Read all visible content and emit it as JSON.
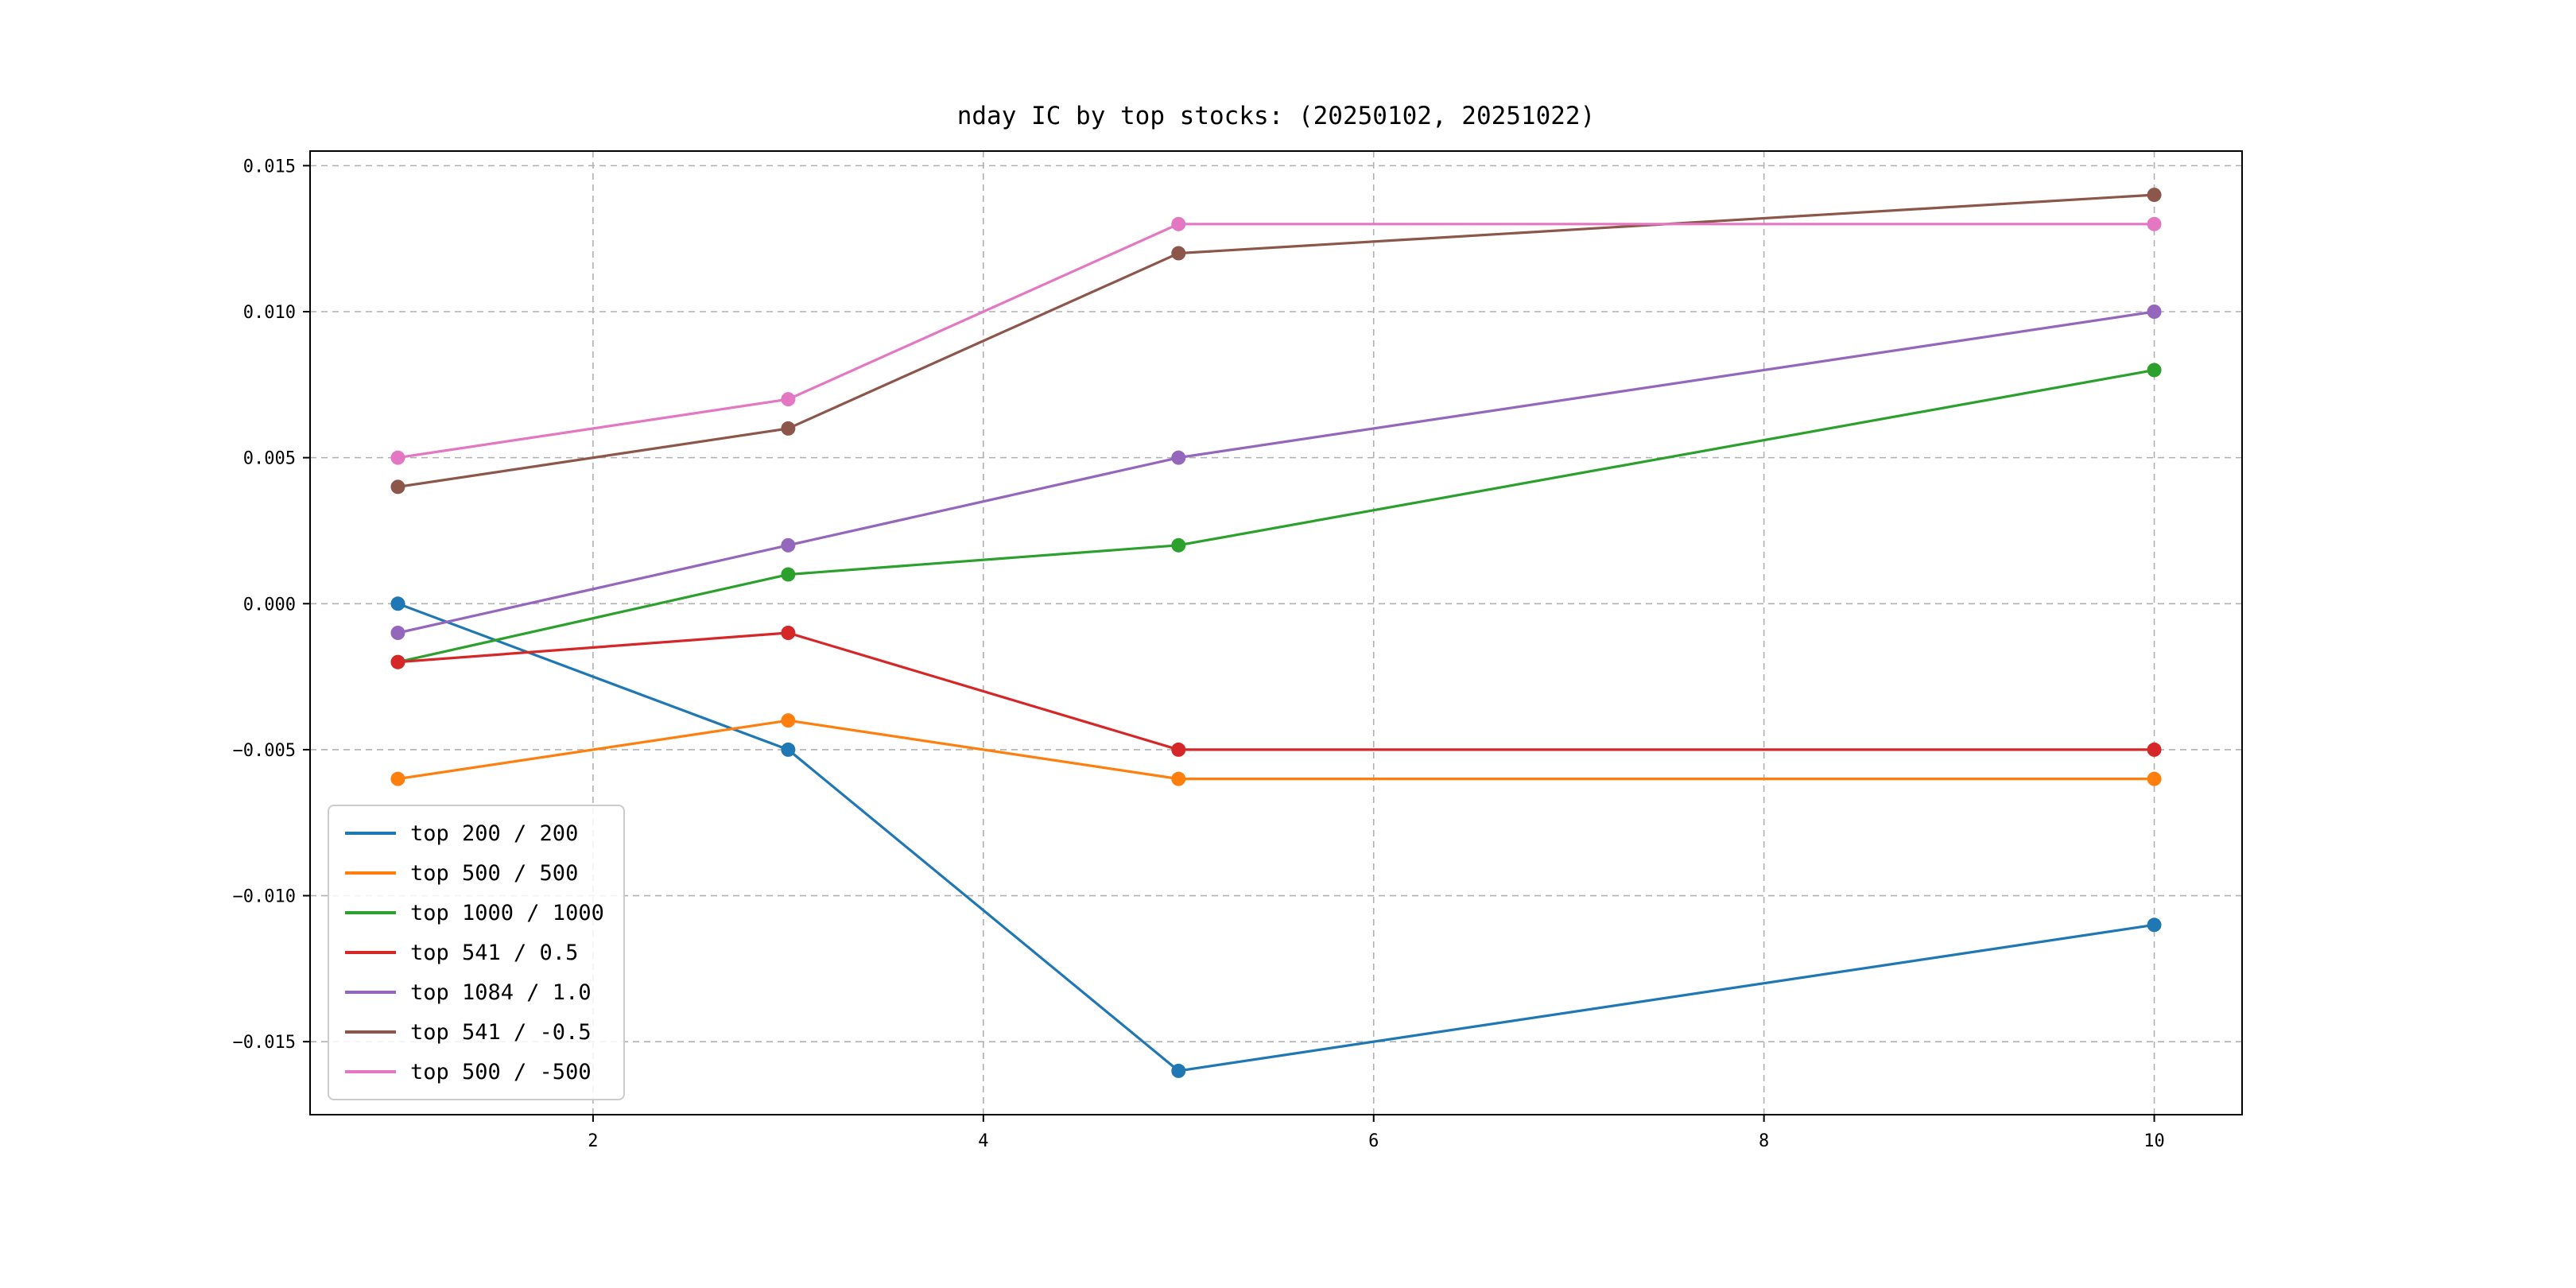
{
  "title": "nday IC by top stocks: (20250102, 20251022)",
  "chart_data": {
    "type": "line",
    "title": "nday IC by top stocks: (20250102, 20251022)",
    "xlabel": "",
    "ylabel": "",
    "x": [
      1,
      3,
      5,
      10
    ],
    "series": [
      {
        "name": "top 200 / 200",
        "color": "#1f77b4",
        "values": [
          0.0,
          -0.005,
          -0.016,
          -0.011
        ]
      },
      {
        "name": "top 500 / 500",
        "color": "#ff7f0e",
        "values": [
          -0.006,
          -0.004,
          -0.006,
          -0.006
        ]
      },
      {
        "name": "top 1000 / 1000",
        "color": "#2ca02c",
        "values": [
          -0.002,
          0.001,
          0.002,
          0.008
        ]
      },
      {
        "name": "top 541 / 0.5",
        "color": "#d62728",
        "values": [
          -0.002,
          -0.001,
          -0.005,
          -0.005
        ]
      },
      {
        "name": "top 1084 / 1.0",
        "color": "#9467bd",
        "values": [
          -0.001,
          0.002,
          0.005,
          0.01
        ]
      },
      {
        "name": "top 541 / -0.5",
        "color": "#8c564b",
        "values": [
          0.004,
          0.006,
          0.012,
          0.014
        ]
      },
      {
        "name": "top 500 / -500",
        "color": "#e377c2",
        "values": [
          0.005,
          0.007,
          0.013,
          0.013
        ]
      }
    ],
    "xlim": [
      0.55,
      10.45
    ],
    "ylim": [
      -0.0175,
      0.0155
    ],
    "xticks": [
      2,
      4,
      6,
      8,
      10
    ],
    "yticks": [
      0.015,
      0.01,
      0.005,
      0.0,
      -0.005,
      -0.01,
      -0.015
    ],
    "grid": true,
    "grid_style": "dashed",
    "legend_position": "lower-left",
    "marker": "circle"
  }
}
